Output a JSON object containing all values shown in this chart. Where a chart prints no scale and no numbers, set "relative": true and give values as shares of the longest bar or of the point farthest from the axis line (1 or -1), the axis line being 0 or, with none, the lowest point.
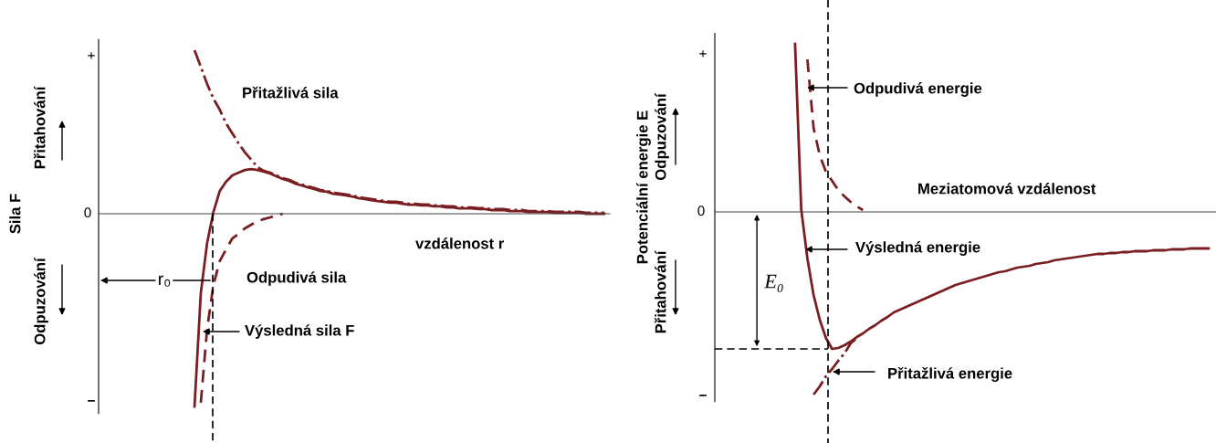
{
  "chart_data": [
    {
      "type": "line",
      "relative": true,
      "ylabel": "Sila F",
      "xlabel": "vzdálenost r",
      "categories": [
        null,
        null,
        null,
        null,
        null,
        null,
        null,
        null,
        null,
        null,
        null,
        null,
        null,
        null,
        null,
        null,
        null,
        null,
        null,
        null,
        null,
        null,
        null,
        null,
        null,
        null,
        null,
        null,
        null,
        null,
        null,
        null,
        null,
        null,
        null,
        null,
        null,
        null,
        null,
        null,
        null,
        null,
        null,
        null,
        null,
        null,
        null,
        null,
        null,
        null,
        null,
        null,
        null,
        null,
        null,
        null,
        null,
        null,
        null,
        null,
        null,
        null,
        null,
        null,
        null,
        null,
        null,
        null,
        null,
        null,
        null,
        null,
        null,
        null,
        null,
        null,
        null,
        null,
        null,
        null,
        null
      ],
      "series": [
        {
          "color": "#7a1e22",
          "line_style": "dotted",
          "values": [
            null,
            null,
            null,
            null,
            null,
            null,
            null,
            null,
            null,
            null,
            null,
            null,
            null,
            null,
            null,
            0.848,
            0.763,
            0.673,
            0.597,
            0.54,
            0.469,
            0.417,
            0.365,
            0.318,
            0.28,
            0.242,
            0.222,
            0.213,
            0.199,
            0.185,
            0.176,
            0.161,
            0.152,
            0.142,
            0.133,
            0.123,
            0.119,
            0.109,
            0.105,
            0.1,
            0.095,
            0.086,
            0.081,
            0.076,
            0.071,
            0.067,
            0.062,
            0.062,
            0.057,
            0.052,
            0.052,
            0.048,
            0.048,
            0.043,
            0.043,
            0.038,
            0.038,
            0.033,
            0.033,
            0.033,
            0.029,
            0.029,
            0.024,
            0.024,
            0.024,
            0.019,
            0.019,
            0.019,
            0.014,
            0.014,
            0.014,
            0.014,
            0.01,
            0.01,
            0.01,
            0.01,
            0.01,
            0.005,
            0.005,
            0.005,
            0.005
          ]
        },
        {
          "color": "#7a1e22",
          "line_style": "solid",
          "values": [
            null,
            null,
            null,
            null,
            null,
            null,
            null,
            null,
            null,
            null,
            null,
            null,
            null,
            null,
            null,
            -1.0,
            -0.412,
            -0.152,
            0.009,
            0.118,
            0.166,
            0.199,
            0.213,
            0.227,
            0.232,
            0.227,
            0.218,
            0.209,
            0.194,
            0.18,
            0.171,
            0.156,
            0.147,
            0.137,
            0.128,
            0.118,
            0.114,
            0.104,
            0.1,
            0.095,
            0.09,
            0.081,
            0.076,
            0.071,
            0.066,
            0.062,
            0.057,
            0.057,
            0.052,
            0.047,
            0.047,
            0.043,
            0.043,
            0.038,
            0.038,
            0.033,
            0.033,
            0.028,
            0.028,
            0.028,
            0.024,
            0.024,
            0.019,
            0.019,
            0.019,
            0.014,
            0.014,
            0.014,
            0.009,
            0.009,
            0.009,
            0.009,
            0.005,
            0.005,
            0.005,
            0.005,
            0.005,
            0,
            0,
            0,
            0
          ]
        },
        {
          "color": "#7a1e22",
          "line_style": "dashed",
          "values": [
            null,
            null,
            null,
            null,
            null,
            null,
            null,
            null,
            null,
            null,
            null,
            null,
            null,
            null,
            null,
            null,
            -0.98,
            -0.597,
            -0.37,
            -0.246,
            -0.185,
            -0.128,
            -0.104,
            -0.076,
            -0.057,
            -0.038,
            -0.028,
            -0.019,
            -0.009,
            0,
            null,
            null,
            null,
            null,
            null,
            null,
            null,
            null,
            null,
            null,
            null,
            null,
            null,
            null,
            null,
            null,
            null,
            null,
            null,
            null,
            null,
            null,
            null,
            null,
            null,
            null,
            null,
            null,
            null,
            null,
            null,
            null,
            null,
            null,
            null,
            null,
            null,
            null,
            null,
            null,
            null,
            null,
            null,
            null,
            null,
            null,
            null,
            null,
            null,
            null,
            null
          ]
        }
      ],
      "annotations": [
        "+",
        "0",
        "−",
        "Přitahování",
        "Odpuzování",
        "Přitažlivá sila",
        "Odpudivá sila",
        "Výsledná sila F",
        "r₀"
      ]
    },
    {
      "type": "line",
      "relative": true,
      "ylabel": "Potenciální energie E",
      "xlabel": "Meziatomová vzdálenost",
      "categories": [
        null,
        null,
        null,
        null,
        null,
        null,
        null,
        null,
        null,
        null,
        null,
        null,
        null,
        null,
        null,
        null,
        null,
        null,
        null,
        null,
        null,
        null,
        null,
        null,
        null,
        null,
        null,
        null,
        null,
        null,
        null,
        null,
        null,
        null,
        null,
        null,
        null,
        null,
        null,
        null,
        null,
        null,
        null,
        null,
        null,
        null,
        null,
        null,
        null,
        null,
        null,
        null,
        null,
        null,
        null,
        null,
        null,
        null,
        null,
        null,
        null,
        null,
        null,
        null,
        null,
        null,
        null,
        null,
        null,
        null,
        null,
        null,
        null,
        null,
        null,
        null,
        null,
        null,
        null,
        null,
        null
      ],
      "series": [
        {
          "color": "#7a1e22",
          "line_style": "solid",
          "values": [
            null,
            null,
            null,
            null,
            null,
            null,
            null,
            null,
            null,
            null,
            null,
            null,
            null,
            0.92,
            0.015,
            -0.255,
            -0.455,
            -0.59,
            -0.69,
            -0.75,
            -0.745,
            -0.73,
            -0.71,
            -0.685,
            -0.665,
            -0.64,
            -0.62,
            -0.595,
            -0.575,
            -0.55,
            -0.535,
            -0.52,
            -0.505,
            -0.49,
            -0.475,
            -0.46,
            -0.445,
            -0.43,
            -0.415,
            -0.4,
            -0.39,
            -0.38,
            -0.37,
            -0.36,
            -0.35,
            -0.34,
            -0.33,
            -0.325,
            -0.315,
            -0.305,
            -0.3,
            -0.295,
            -0.285,
            -0.28,
            -0.275,
            -0.265,
            -0.26,
            -0.255,
            -0.25,
            -0.245,
            -0.24,
            -0.235,
            -0.23,
            -0.23,
            -0.225,
            -0.225,
            -0.22,
            -0.22,
            -0.215,
            -0.215,
            -0.215,
            -0.21,
            -0.21,
            -0.21,
            -0.205,
            -0.205,
            -0.205,
            -0.2,
            -0.2,
            -0.2,
            -0.2
          ]
        },
        {
          "color": "#7a1e22",
          "line_style": "dashed",
          "values": [
            null,
            null,
            null,
            null,
            null,
            null,
            null,
            null,
            null,
            null,
            null,
            null,
            null,
            null,
            null,
            0.835,
            0.46,
            0.31,
            0.22,
            0.17,
            0.12,
            0.085,
            0.055,
            0.03,
            0.01,
            null,
            null,
            null,
            null,
            null,
            null,
            null,
            null,
            null,
            null,
            null,
            null,
            null,
            null,
            null,
            null,
            null,
            null,
            null,
            null,
            null,
            null,
            null,
            null,
            null,
            null,
            null,
            null,
            null,
            null,
            null,
            null,
            null,
            null,
            null,
            null,
            null,
            null,
            null,
            null,
            null,
            null,
            null,
            null,
            null,
            null,
            null,
            null,
            null,
            null,
            null,
            null,
            null,
            null,
            null,
            null
          ]
        },
        {
          "color": "#7a1e22",
          "line_style": "dotted",
          "values": [
            null,
            null,
            null,
            null,
            null,
            null,
            null,
            null,
            null,
            null,
            null,
            null,
            null,
            null,
            null,
            null,
            -1.0,
            -0.955,
            -0.9,
            -0.86,
            -0.815,
            -0.775,
            -0.72,
            -0.69,
            null,
            null,
            null,
            null,
            null,
            null,
            null,
            null,
            null,
            null,
            null,
            null,
            null,
            null,
            null,
            null,
            null,
            null,
            null,
            null,
            null,
            null,
            null,
            null,
            null,
            null,
            null,
            null,
            null,
            null,
            null,
            null,
            null,
            null,
            null,
            null,
            null,
            null,
            null,
            null,
            null,
            null,
            null,
            null,
            null,
            null,
            null,
            null,
            null,
            null,
            null,
            null,
            null,
            null,
            null,
            null,
            null
          ]
        }
      ],
      "ref_lines": [
        {
          "axis": "y",
          "value": -0.75,
          "label": "E₀",
          "color": "#000000",
          "line_style": "dashed"
        }
      ],
      "annotations": [
        "+",
        "0",
        "−",
        "Odpuzování",
        "Přitahování",
        "Odpudivá energie",
        "Výsledná energie",
        "Přitažlivá energie"
      ]
    }
  ]
}
